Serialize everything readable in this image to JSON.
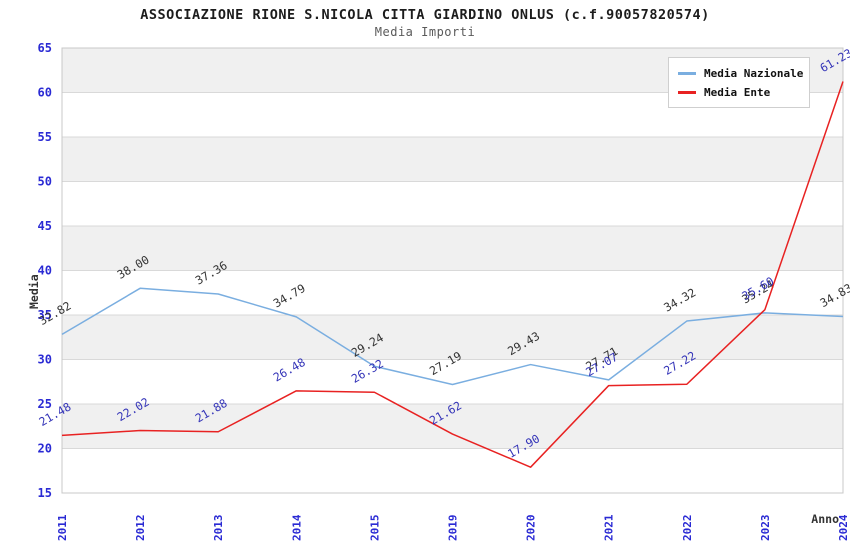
{
  "header": {
    "title": "ASSOCIAZIONE RIONE S.NICOLA CITTA GIARDINO ONLUS (c.f.90057820574)",
    "subtitle": "Media Importi"
  },
  "legend": {
    "items": [
      {
        "label": "Media Nazionale",
        "color": "#7aaee0"
      },
      {
        "label": "Media Ente",
        "color": "#e82222"
      }
    ]
  },
  "chart_data": {
    "type": "line",
    "title": "ASSOCIAZIONE RIONE S.NICOLA CITTA GIARDINO ONLUS (c.f.90057820574)",
    "subtitle": "Media Importi",
    "xlabel": "Anno",
    "ylabel": "Media",
    "categories": [
      "2011",
      "2012",
      "2013",
      "2014",
      "2015",
      "2019",
      "2020",
      "2021",
      "2022",
      "2023",
      "2024"
    ],
    "series": [
      {
        "name": "Media Nazionale",
        "color": "#7aaee0",
        "label_color": "#333333",
        "values": [
          32.82,
          38.0,
          37.36,
          34.79,
          29.24,
          27.19,
          29.43,
          27.71,
          34.32,
          35.24,
          34.83
        ]
      },
      {
        "name": "Media Ente",
        "color": "#e82222",
        "label_color": "#3434b8",
        "values": [
          21.48,
          22.02,
          21.88,
          26.48,
          26.32,
          21.62,
          17.9,
          27.07,
          27.22,
          35.6,
          61.23
        ]
      }
    ],
    "ylim": [
      15,
      65
    ],
    "yticks": [
      15,
      20,
      25,
      30,
      35,
      40,
      45,
      50,
      55,
      60,
      65
    ],
    "grid": "horizontal-bands",
    "band_color": "#f0f0f0",
    "gridline_color": "#d9d9d9",
    "border_color": "#c8c8c8",
    "axis_tick_color": "#2a2ad4",
    "axis_title_color": "#333333",
    "legend_position": "top-right",
    "value_label_decimals": 2
  }
}
